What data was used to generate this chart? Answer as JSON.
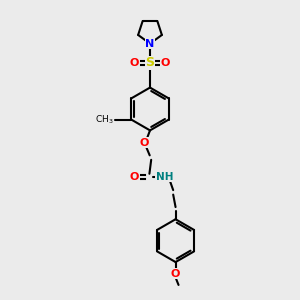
{
  "bg_color": "#ebebeb",
  "bond_color": "#000000",
  "nitrogen_color": "#0000ff",
  "oxygen_color": "#ff0000",
  "sulfur_color": "#cccc00",
  "NH_color": "#008080",
  "line_width": 1.5,
  "figsize": [
    3.0,
    3.0
  ],
  "dpi": 100,
  "xlim": [
    0,
    6
  ],
  "ylim": [
    0,
    10
  ]
}
